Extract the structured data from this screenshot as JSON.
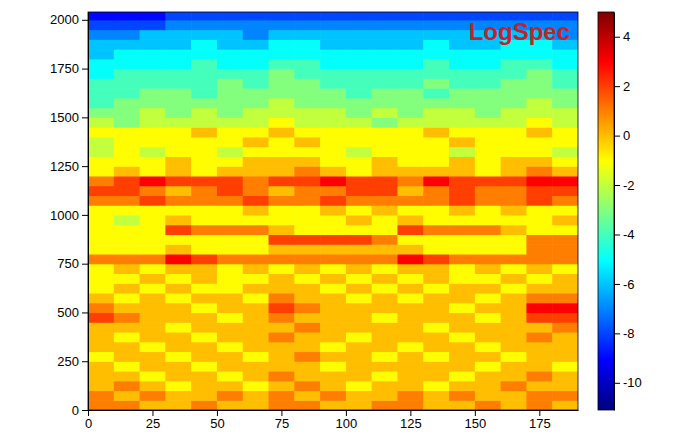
{
  "chart_data": {
    "type": "heatmap",
    "title": "LogSpec",
    "color": "jet",
    "xlim": [
      0,
      190
    ],
    "ylim": [
      0,
      2040
    ],
    "xticks": [
      0,
      25,
      50,
      75,
      100,
      125,
      150,
      175
    ],
    "yticks": [
      0,
      250,
      500,
      750,
      1000,
      1250,
      1500,
      1750,
      2000
    ],
    "x": [
      5,
      15,
      25,
      35,
      45,
      55,
      65,
      75,
      85,
      95,
      105,
      115,
      125,
      135,
      145,
      155,
      165,
      175,
      185
    ],
    "y": [
      25,
      75,
      125,
      175,
      225,
      275,
      325,
      375,
      425,
      475,
      525,
      575,
      625,
      675,
      725,
      775,
      825,
      875,
      925,
      975,
      1025,
      1075,
      1125,
      1175,
      1225,
      1275,
      1325,
      1375,
      1425,
      1475,
      1525,
      1575,
      1625,
      1675,
      1725,
      1775,
      1825,
      1875,
      1925,
      1975,
      2025
    ],
    "z": [
      [
        1,
        1,
        0,
        0,
        1,
        0,
        0,
        1,
        1,
        0,
        0,
        1,
        1,
        0,
        0,
        1,
        0,
        1,
        0
      ],
      [
        1,
        0,
        1,
        0,
        0,
        1,
        0,
        1,
        0,
        1,
        0,
        0,
        1,
        0,
        1,
        0,
        0,
        1,
        1
      ],
      [
        0,
        1,
        0,
        -1,
        0,
        0,
        -1,
        0,
        1,
        0,
        -1,
        0,
        0,
        -1,
        0,
        0,
        1,
        0,
        0
      ],
      [
        0,
        0,
        -1,
        0,
        0,
        -1,
        0,
        1,
        0,
        0,
        0,
        -1,
        0,
        0,
        -1,
        0,
        0,
        1,
        0
      ],
      [
        0,
        -1,
        0,
        0,
        -1,
        0,
        0,
        0,
        0,
        -1,
        0,
        0,
        0,
        0,
        0,
        -1,
        0,
        0,
        -1
      ],
      [
        -1,
        0,
        0,
        -1,
        0,
        0,
        -1,
        0,
        1,
        0,
        0,
        -1,
        0,
        -1,
        0,
        0,
        -1,
        0,
        0
      ],
      [
        0,
        0,
        -1,
        0,
        0,
        -1,
        0,
        0,
        0,
        -1,
        0,
        0,
        -1,
        0,
        0,
        -1,
        0,
        0,
        0
      ],
      [
        0,
        -1,
        0,
        0,
        -1,
        0,
        0,
        1,
        0,
        0,
        -1,
        0,
        0,
        0,
        -1,
        0,
        0,
        1,
        0
      ],
      [
        0,
        0,
        0,
        -1,
        0,
        0,
        0,
        0,
        1,
        0,
        0,
        0,
        0,
        -1,
        0,
        0,
        0,
        0,
        1
      ],
      [
        2,
        1,
        0,
        0,
        0,
        -1,
        0,
        1,
        0,
        0,
        0,
        -1,
        0,
        0,
        0,
        -1,
        0,
        2,
        2
      ],
      [
        1,
        0,
        0,
        0,
        -1,
        0,
        0,
        2,
        1,
        0,
        0,
        0,
        0,
        0,
        -1,
        0,
        0,
        3,
        3
      ],
      [
        0,
        -1,
        0,
        -1,
        0,
        0,
        -1,
        1,
        0,
        0,
        -1,
        0,
        -1,
        0,
        0,
        -1,
        0,
        1,
        1
      ],
      [
        -1,
        0,
        -1,
        0,
        -1,
        -1,
        0,
        0,
        0,
        -1,
        0,
        -1,
        0,
        -1,
        0,
        0,
        -1,
        0,
        0
      ],
      [
        -1,
        -1,
        0,
        -1,
        0,
        -1,
        -1,
        0,
        -1,
        0,
        -1,
        0,
        -1,
        0,
        -1,
        -1,
        0,
        -1,
        0
      ],
      [
        -1,
        0,
        -1,
        0,
        0,
        -1,
        0,
        -1,
        0,
        -1,
        0,
        -1,
        0,
        0,
        -1,
        0,
        -1,
        0,
        -1
      ],
      [
        1,
        1,
        1,
        3,
        2,
        1,
        1,
        1,
        1,
        1,
        1,
        1,
        3,
        2,
        1,
        1,
        1,
        1,
        1
      ],
      [
        -1,
        -1,
        -1,
        0,
        -1,
        -1,
        -1,
        0,
        0,
        0,
        0,
        0,
        0,
        -1,
        -1,
        -1,
        -1,
        1,
        1
      ],
      [
        -1,
        -1,
        -1,
        -1,
        -1,
        -1,
        -1,
        2,
        2,
        2,
        2,
        1,
        -1,
        -1,
        -1,
        -1,
        -1,
        1,
        1
      ],
      [
        -1,
        -1,
        -1,
        2,
        1,
        1,
        1,
        0,
        -1,
        -1,
        -1,
        -1,
        2,
        1,
        1,
        1,
        0,
        -1,
        -1
      ],
      [
        -1,
        -2,
        -1,
        0,
        -1,
        -1,
        -1,
        -1,
        -1,
        -1,
        0,
        -1,
        0,
        -1,
        -1,
        -1,
        -1,
        -1,
        0
      ],
      [
        -1,
        -1,
        -1,
        -1,
        -1,
        -1,
        0,
        -1,
        -1,
        0,
        -1,
        0,
        -1,
        -1,
        0,
        -1,
        0,
        -1,
        -1
      ],
      [
        1,
        1,
        2,
        1,
        1,
        1,
        2,
        1,
        1,
        2,
        1,
        1,
        1,
        1,
        2,
        1,
        1,
        2,
        1
      ],
      [
        2,
        2,
        1,
        0,
        1,
        2,
        1,
        0,
        1,
        1,
        2,
        2,
        0,
        1,
        2,
        1,
        1,
        2,
        2
      ],
      [
        1,
        2,
        3,
        2,
        2,
        2,
        1,
        2,
        2,
        3,
        2,
        2,
        1,
        3,
        2,
        2,
        2,
        3,
        3
      ],
      [
        -1,
        0,
        -1,
        0,
        -1,
        0,
        0,
        0,
        1,
        0,
        -1,
        0,
        0,
        0,
        0,
        -1,
        0,
        1,
        0
      ],
      [
        -1,
        -1,
        -1,
        0,
        -1,
        -1,
        0,
        0,
        0,
        -1,
        -1,
        0,
        -1,
        -1,
        0,
        -1,
        0,
        0,
        -1
      ],
      [
        -2,
        -1,
        -2,
        -1,
        -1,
        -2,
        -1,
        -1,
        -1,
        -1,
        -2,
        -1,
        -1,
        -1,
        -2,
        -1,
        -1,
        -1,
        -2
      ],
      [
        -2,
        -1,
        -1,
        -1,
        -1,
        -1,
        0,
        -1,
        0,
        -1,
        -1,
        -1,
        -1,
        -1,
        0,
        -1,
        -1,
        -1,
        -1
      ],
      [
        -1,
        -1,
        -1,
        -1,
        0,
        -1,
        -1,
        0,
        -1,
        -1,
        -1,
        -1,
        -1,
        0,
        -1,
        -1,
        -1,
        0,
        -1
      ],
      [
        -2,
        -3,
        -2,
        -2,
        -2,
        -2,
        -2,
        -1,
        -2,
        -2,
        -2,
        -3,
        -2,
        -2,
        -2,
        -2,
        -2,
        -1,
        -2
      ],
      [
        -3,
        -3,
        -2,
        -3,
        -2,
        -3,
        -2,
        -2,
        -2,
        -2,
        -3,
        -2,
        -3,
        -2,
        -2,
        -3,
        -2,
        -2,
        -2
      ],
      [
        -4,
        -3,
        -3,
        -3,
        -3,
        -3,
        -3,
        -2,
        -3,
        -3,
        -3,
        -3,
        -3,
        -3,
        -3,
        -3,
        -3,
        -2,
        -3
      ],
      [
        -4,
        -4,
        -3,
        -3,
        -4,
        -3,
        -3,
        -3,
        -3,
        -3,
        -4,
        -3,
        -3,
        -4,
        -3,
        -3,
        -3,
        -3,
        -3
      ],
      [
        -4,
        -4,
        -4,
        -4,
        -4,
        -3,
        -4,
        -3,
        -3,
        -4,
        -4,
        -4,
        -4,
        -3,
        -4,
        -4,
        -3,
        -3,
        -4
      ],
      [
        -5,
        -4,
        -4,
        -4,
        -4,
        -4,
        -4,
        -3,
        -4,
        -4,
        -4,
        -4,
        -4,
        -4,
        -4,
        -4,
        -4,
        -3,
        -4
      ],
      [
        -5,
        -5,
        -5,
        -5,
        -4,
        -5,
        -5,
        -4,
        -4,
        -5,
        -5,
        -5,
        -5,
        -4,
        -5,
        -5,
        -4,
        -4,
        -5
      ],
      [
        -6,
        -5,
        -5,
        -5,
        -5,
        -5,
        -5,
        -5,
        -5,
        -5,
        -5,
        -5,
        -5,
        -5,
        -5,
        -5,
        -5,
        -5,
        -5
      ],
      [
        -6,
        -6,
        -6,
        -6,
        -5,
        -6,
        -6,
        -5,
        -5,
        -6,
        -6,
        -6,
        -6,
        -5,
        -6,
        -6,
        -5,
        -5,
        -6
      ],
      [
        -7,
        -7,
        -6,
        -6,
        -6,
        -6,
        -7,
        -6,
        -6,
        -6,
        -6,
        -6,
        -6,
        -6,
        -6,
        -6,
        -6,
        -6,
        -7
      ],
      [
        -8,
        -8,
        -8,
        -7,
        -7,
        -7,
        -7,
        -7,
        -7,
        -7,
        -7,
        -7,
        -7,
        -7,
        -7,
        -7,
        -7,
        -7,
        -7
      ],
      [
        -9,
        -9,
        -9,
        -8,
        -8,
        -8,
        -8,
        -8,
        -8,
        -8,
        -8,
        -8,
        -8,
        -8,
        -8,
        -8,
        -8,
        -8,
        -8
      ]
    ],
    "colorbar": {
      "range": [
        -11.1,
        5.0
      ],
      "ticks": [
        -10,
        -8,
        -6,
        -4,
        -2,
        0,
        2,
        4
      ]
    }
  }
}
